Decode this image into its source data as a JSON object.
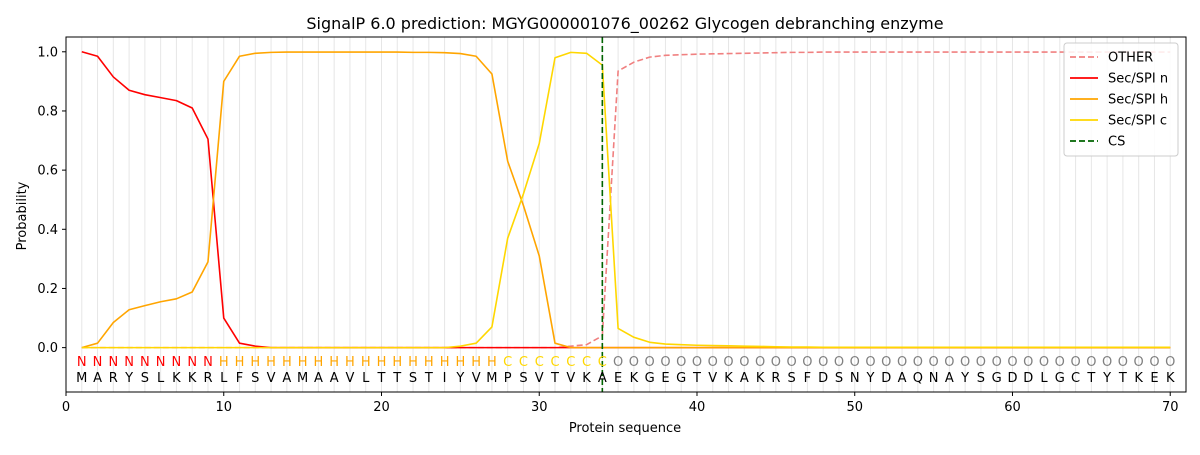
{
  "chart_data": {
    "type": "line",
    "title": "SignalP 6.0 prediction: MGYG000001076_00262 Glycogen debranching enzyme",
    "xlabel": "Protein sequence",
    "ylabel": "Probability",
    "xlim": [
      0,
      71
    ],
    "ylim": [
      -0.15,
      1.05
    ],
    "xticks": [
      0,
      10,
      20,
      30,
      40,
      50,
      60,
      70
    ],
    "yticks": [
      0.0,
      0.2,
      0.4,
      0.6,
      0.8,
      1.0
    ],
    "ytick_labels": [
      "0.0",
      "0.2",
      "0.4",
      "0.6",
      "0.8",
      "1.0"
    ],
    "grid": "vertical lines at each position",
    "legend_position": "top-right",
    "x": [
      1,
      2,
      3,
      4,
      5,
      6,
      7,
      8,
      9,
      10,
      11,
      12,
      13,
      14,
      15,
      16,
      17,
      18,
      19,
      20,
      21,
      22,
      23,
      24,
      25,
      26,
      27,
      28,
      29,
      30,
      31,
      32,
      33,
      34,
      35,
      36,
      37,
      38,
      39,
      40,
      41,
      42,
      43,
      44,
      45,
      46,
      47,
      48,
      49,
      50,
      51,
      52,
      53,
      54,
      55,
      56,
      57,
      58,
      59,
      60,
      61,
      62,
      63,
      64,
      65,
      66,
      67,
      68,
      69,
      70
    ],
    "sequence": [
      "M",
      "A",
      "R",
      "Y",
      "S",
      "L",
      "K",
      "K",
      "R",
      "L",
      "F",
      "S",
      "V",
      "A",
      "M",
      "A",
      "A",
      "V",
      "L",
      "T",
      "T",
      "S",
      "T",
      "I",
      "Y",
      "V",
      "M",
      "P",
      "S",
      "V",
      "T",
      "V",
      "K",
      "A",
      "E",
      "K",
      "G",
      "E",
      "G",
      "T",
      "V",
      "K",
      "A",
      "K",
      "R",
      "S",
      "F",
      "D",
      "S",
      "N",
      "Y",
      "D",
      "A",
      "Q",
      "N",
      "A",
      "Y",
      "S",
      "G",
      "D",
      "D",
      "L",
      "G",
      "C",
      "T",
      "Y",
      "T",
      "K",
      "E",
      "K"
    ],
    "predicted_labels": [
      "N",
      "N",
      "N",
      "N",
      "N",
      "N",
      "N",
      "N",
      "N",
      "H",
      "H",
      "H",
      "H",
      "H",
      "H",
      "H",
      "H",
      "H",
      "H",
      "H",
      "H",
      "H",
      "H",
      "H",
      "H",
      "H",
      "H",
      "C",
      "C",
      "C",
      "C",
      "C",
      "C",
      "C",
      "O",
      "O",
      "O",
      "O",
      "O",
      "O",
      "O",
      "O",
      "O",
      "O",
      "O",
      "O",
      "O",
      "O",
      "O",
      "O",
      "O",
      "O",
      "O",
      "O",
      "O",
      "O",
      "O",
      "O",
      "O",
      "O",
      "O",
      "O",
      "O",
      "O",
      "O",
      "O",
      "O",
      "O",
      "O",
      "O"
    ],
    "label_colors": {
      "N": "#ff0000",
      "H": "#ffa500",
      "C": "#ffd700",
      "O": "#808080"
    },
    "series": [
      {
        "name": "OTHER",
        "color": "#f08080",
        "dashed": true,
        "values": [
          0,
          0,
          0,
          0,
          0,
          0,
          0,
          0,
          0,
          0,
          0,
          0,
          0,
          0,
          0,
          0,
          0,
          0,
          0,
          0,
          0,
          0,
          0,
          0,
          0,
          0,
          0,
          0,
          0,
          0,
          0,
          0.005,
          0.01,
          0.04,
          0.935,
          0.965,
          0.982,
          0.988,
          0.99,
          0.992,
          0.993,
          0.994,
          0.995,
          0.996,
          0.997,
          0.998,
          0.998,
          0.999,
          0.999,
          0.999,
          0.999,
          0.999,
          0.999,
          0.999,
          0.999,
          0.999,
          0.999,
          0.999,
          0.999,
          0.999,
          0.999,
          0.999,
          0.999,
          0.999,
          0.999,
          0.999,
          0.999,
          0.999,
          0.999,
          0.999
        ]
      },
      {
        "name": "Sec/SPI n",
        "color": "#ff0000",
        "dashed": false,
        "values": [
          1.0,
          0.985,
          0.915,
          0.87,
          0.855,
          0.845,
          0.835,
          0.81,
          0.705,
          0.1,
          0.015,
          0.005,
          0,
          0,
          0,
          0,
          0,
          0,
          0,
          0,
          0,
          0,
          0,
          0,
          0,
          0,
          0,
          0,
          0,
          0,
          0,
          0,
          0,
          0,
          0,
          0,
          0,
          0,
          0,
          0,
          0,
          0,
          0,
          0,
          0,
          0,
          0,
          0,
          0,
          0,
          0,
          0,
          0,
          0,
          0,
          0,
          0,
          0,
          0,
          0,
          0,
          0,
          0,
          0,
          0,
          0,
          0,
          0,
          0,
          0
        ]
      },
      {
        "name": "Sec/SPI h",
        "color": "#ffa500",
        "dashed": false,
        "values": [
          0,
          0.015,
          0.085,
          0.128,
          0.142,
          0.155,
          0.165,
          0.188,
          0.29,
          0.9,
          0.985,
          0.995,
          0.998,
          0.999,
          0.999,
          0.999,
          0.999,
          0.999,
          0.999,
          0.999,
          0.999,
          0.998,
          0.998,
          0.997,
          0.994,
          0.985,
          0.925,
          0.63,
          0.48,
          0.31,
          0.015,
          0,
          0,
          0,
          0,
          0,
          0,
          0,
          0,
          0,
          0,
          0,
          0,
          0,
          0,
          0,
          0,
          0,
          0,
          0,
          0,
          0,
          0,
          0,
          0,
          0,
          0,
          0,
          0,
          0,
          0,
          0,
          0,
          0,
          0,
          0,
          0,
          0,
          0,
          0
        ]
      },
      {
        "name": "Sec/SPI c",
        "color": "#ffd700",
        "dashed": false,
        "values": [
          0,
          0,
          0,
          0,
          0,
          0,
          0,
          0,
          0,
          0,
          0,
          0,
          0,
          0,
          0,
          0,
          0,
          0,
          0,
          0,
          0,
          0,
          0,
          0,
          0.005,
          0.015,
          0.07,
          0.37,
          0.52,
          0.69,
          0.98,
          0.998,
          0.995,
          0.955,
          0.065,
          0.035,
          0.018,
          0.012,
          0.01,
          0.008,
          0.007,
          0.006,
          0.005,
          0.004,
          0.003,
          0.002,
          0.002,
          0.001,
          0.001,
          0.001,
          0.001,
          0.001,
          0.001,
          0.001,
          0.001,
          0.001,
          0.001,
          0.001,
          0.001,
          0.001,
          0.001,
          0.001,
          0.001,
          0.001,
          0.001,
          0.001,
          0.001,
          0.001,
          0.001,
          0.001
        ]
      }
    ],
    "cs": {
      "name": "CS",
      "x": 34,
      "color": "#006400"
    }
  }
}
